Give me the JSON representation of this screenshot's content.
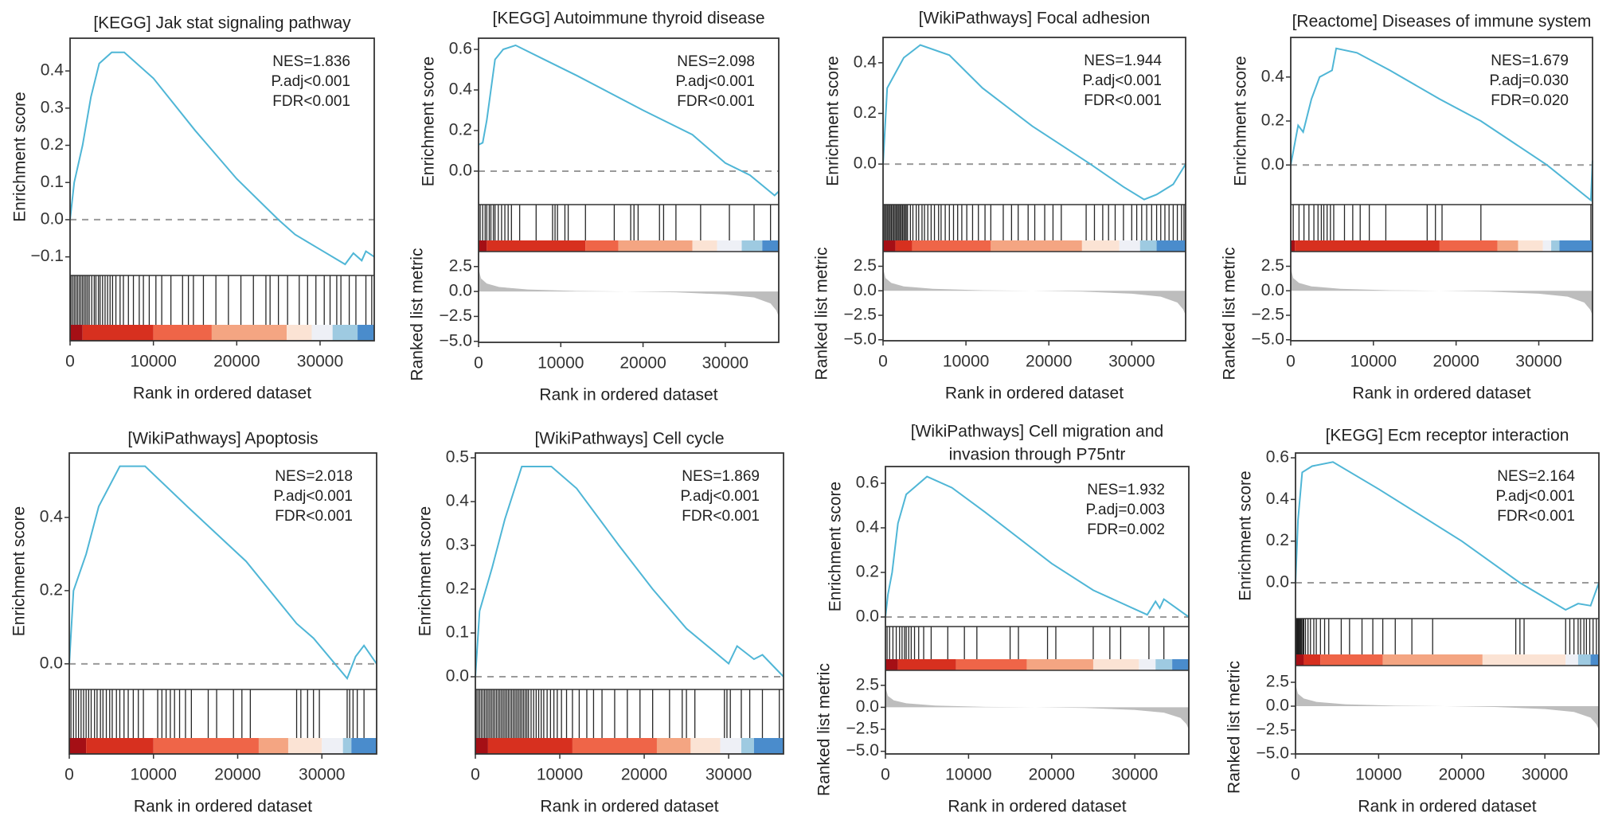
{
  "colors": {
    "es_line": "#4fb6d6",
    "zero_line": "#9a9a9a",
    "metric_fill": "#bdbdbd",
    "hit": "#000000",
    "colorbar": [
      "#a50f15",
      "#d7301f",
      "#ef6548",
      "#f4a582",
      "#fbe3d4",
      "#eef0f6",
      "#9ecae1",
      "#4a8ccc"
    ]
  },
  "chart_data": [
    {
      "type": "line",
      "title_lines": [
        "[KEGG] Jak stat signaling pathway"
      ],
      "stats": [
        "NES=1.836",
        "P.adj<0.001",
        "FDR<0.001"
      ],
      "ylabel": "Enrichment score",
      "xlabel": "Rank in ordered dataset",
      "xlim": [
        0,
        36500
      ],
      "xticks": [
        "0",
        "10000",
        "20000",
        "30000"
      ],
      "es_ylim": [
        -0.15,
        0.488
      ],
      "es_yticks": [
        "−0.1",
        "0.0",
        "0.1",
        "0.2",
        "0.3",
        "0.4"
      ],
      "es_curve": [
        [
          0,
          0
        ],
        [
          500,
          0.1
        ],
        [
          1500,
          0.2
        ],
        [
          2500,
          0.33
        ],
        [
          3500,
          0.42
        ],
        [
          5000,
          0.45
        ],
        [
          6500,
          0.45
        ],
        [
          10000,
          0.38
        ],
        [
          15000,
          0.24
        ],
        [
          20000,
          0.11
        ],
        [
          25000,
          0.0
        ],
        [
          27000,
          -0.04
        ],
        [
          30000,
          -0.08
        ],
        [
          33000,
          -0.12
        ],
        [
          34000,
          -0.09
        ],
        [
          35000,
          -0.11
        ],
        [
          35500,
          -0.085
        ],
        [
          36500,
          -0.1
        ]
      ],
      "hits_k": [
        0.1,
        0.3,
        0.5,
        0.7,
        0.9,
        1.1,
        1.3,
        1.5,
        1.7,
        1.9,
        2.1,
        2.3,
        2.6,
        2.9,
        3.1,
        3.4,
        3.6,
        3.9,
        4.2,
        4.5,
        4.8,
        5.1,
        5.5,
        6.0,
        6.4,
        7.0,
        7.6,
        8.3,
        8.8,
        9.5,
        10.3,
        11.0,
        12.1,
        13.5,
        14.2,
        14.8,
        16.0,
        17.5,
        19.0,
        20.5,
        22.0,
        23.5,
        24.0,
        25.0,
        26.1,
        27.5,
        28.5,
        29.5,
        30.5,
        31.2,
        32.0,
        32.5,
        33.5,
        34.3,
        35.5,
        36.2
      ],
      "colorbar_breaks": [
        0,
        1500,
        10000,
        17000,
        26000,
        29000,
        31500,
        34500,
        36500
      ]
    },
    {
      "type": "line",
      "title_lines": [
        "[KEGG] Autoimmune thyroid disease"
      ],
      "stats": [
        "NES=2.098",
        "P.adj<0.001",
        "FDR<0.001"
      ],
      "ylabel": "Enrichment score",
      "ylabel2": "Ranked list metric",
      "xlabel": "Rank in ordered dataset",
      "xlim": [
        0,
        36500
      ],
      "xticks": [
        "0",
        "10000",
        "20000",
        "30000"
      ],
      "es_ylim": [
        -0.165,
        0.655
      ],
      "es_yticks": [
        "0.0",
        "0.2",
        "0.4",
        "0.6"
      ],
      "metric_ylim": [
        -5.1,
        4.0
      ],
      "metric_yticks": [
        "−5.0",
        "−2.5",
        "0.0",
        "2.5"
      ],
      "es_curve": [
        [
          0,
          0.13
        ],
        [
          500,
          0.14
        ],
        [
          1000,
          0.25
        ],
        [
          1500,
          0.4
        ],
        [
          2000,
          0.55
        ],
        [
          3000,
          0.6
        ],
        [
          4500,
          0.62
        ],
        [
          8000,
          0.55
        ],
        [
          12000,
          0.47
        ],
        [
          20000,
          0.3
        ],
        [
          26000,
          0.18
        ],
        [
          30000,
          0.04
        ],
        [
          33000,
          -0.02
        ],
        [
          36000,
          -0.12
        ],
        [
          36500,
          -0.1
        ]
      ],
      "hits_k": [
        0.2,
        0.5,
        0.8,
        1.0,
        1.3,
        1.5,
        1.8,
        2.0,
        2.4,
        2.8,
        3.2,
        3.6,
        4.0,
        5.0,
        7.0,
        9.0,
        9.3,
        9.6,
        10.5,
        10.9,
        13.0,
        16.5,
        18.5,
        18.9,
        19.4,
        22.0,
        22.5,
        24.0,
        27.0,
        30.5,
        33.5,
        35.5
      ],
      "colorbar_breaks": [
        0,
        1000,
        13000,
        17000,
        26000,
        29000,
        32000,
        34500,
        36500
      ]
    },
    {
      "type": "line",
      "title_lines": [
        "[WikiPathways] Focal adhesion"
      ],
      "stats": [
        "NES=1.944",
        "P.adj<0.001",
        "FDR<0.001"
      ],
      "ylabel": "Enrichment score",
      "ylabel2": "Ranked list metric",
      "xlabel": "Rank in ordered dataset",
      "xlim": [
        0,
        36500
      ],
      "xticks": [
        "0",
        "10000",
        "20000",
        "30000"
      ],
      "es_ylim": [
        -0.16,
        0.5
      ],
      "es_yticks": [
        "0.0",
        "0.2",
        "0.4"
      ],
      "metric_ylim": [
        -5.1,
        4.0
      ],
      "metric_yticks": [
        "−5.0",
        "−2.5",
        "0.0",
        "2.5"
      ],
      "es_curve": [
        [
          0,
          0
        ],
        [
          500,
          0.3
        ],
        [
          1500,
          0.36
        ],
        [
          2500,
          0.42
        ],
        [
          4500,
          0.47
        ],
        [
          8000,
          0.43
        ],
        [
          12000,
          0.3
        ],
        [
          18000,
          0.15
        ],
        [
          25000,
          0.0
        ],
        [
          29000,
          -0.09
        ],
        [
          31500,
          -0.14
        ],
        [
          33000,
          -0.12
        ],
        [
          35000,
          -0.08
        ],
        [
          36500,
          0.0
        ]
      ],
      "hits_k": [
        0.1,
        0.25,
        0.4,
        0.55,
        0.7,
        0.85,
        1.0,
        1.15,
        1.3,
        1.45,
        1.6,
        1.75,
        1.9,
        2.05,
        2.2,
        2.35,
        2.5,
        2.65,
        2.8,
        2.95,
        3.3,
        3.6,
        4.0,
        4.3,
        4.7,
        5.0,
        5.4,
        5.8,
        6.2,
        6.7,
        7.0,
        7.5,
        8.0,
        8.5,
        9.0,
        9.5,
        10.1,
        10.8,
        11.5,
        12.3,
        13.0,
        14.5,
        15.5,
        16.3,
        17.5,
        18.3,
        19.5,
        20.5,
        21.5,
        24.5,
        25.5,
        26.5,
        27.2,
        28.0,
        29.0,
        30.0,
        30.6,
        31.2,
        31.8,
        32.4,
        33.0,
        33.5,
        34.0,
        34.5,
        35.0,
        35.5,
        36.0,
        36.3
      ],
      "colorbar_breaks": [
        0,
        1500,
        3500,
        13000,
        24000,
        28500,
        31000,
        33000,
        36500
      ]
    },
    {
      "type": "line",
      "title_lines": [
        "[Reactome] Diseases of immune system"
      ],
      "stats": [
        "NES=1.679",
        "P.adj=0.030",
        "FDR=0.020"
      ],
      "ylabel": "Enrichment score",
      "ylabel2": "Ranked list metric",
      "xlabel": "Rank in ordered dataset",
      "xlim": [
        0,
        36500
      ],
      "xticks": [
        "0",
        "10000",
        "20000",
        "30000"
      ],
      "es_ylim": [
        -0.18,
        0.58
      ],
      "es_yticks": [
        "0.0",
        "0.2",
        "0.4"
      ],
      "metric_ylim": [
        -5.1,
        4.0
      ],
      "metric_yticks": [
        "−5.0",
        "−2.5",
        "0.0",
        "2.5"
      ],
      "es_curve": [
        [
          0,
          0
        ],
        [
          600,
          0.12
        ],
        [
          900,
          0.18
        ],
        [
          1500,
          0.15
        ],
        [
          2500,
          0.3
        ],
        [
          3500,
          0.4
        ],
        [
          5000,
          0.43
        ],
        [
          5500,
          0.53
        ],
        [
          8000,
          0.51
        ],
        [
          12000,
          0.43
        ],
        [
          18000,
          0.3
        ],
        [
          23000,
          0.2
        ],
        [
          31000,
          0.0
        ],
        [
          36300,
          -0.16
        ],
        [
          36500,
          0.02
        ]
      ],
      "hits_k": [
        0.3,
        1.0,
        1.6,
        2.2,
        2.8,
        3.3,
        3.7,
        4.0,
        4.4,
        4.8,
        5.2,
        6.5,
        7.5,
        8.4,
        9.5,
        11.5,
        16.5,
        17.5,
        18.3,
        23.0,
        36.3
      ],
      "colorbar_breaks": [
        0,
        500,
        18000,
        25000,
        27500,
        30500,
        31500,
        32500,
        36500
      ]
    },
    {
      "type": "line",
      "title_lines": [
        "[WikiPathways] Apoptosis"
      ],
      "stats": [
        "NES=2.018",
        "P.adj<0.001",
        "FDR<0.001"
      ],
      "ylabel": "Enrichment score",
      "xlabel": "Rank in ordered dataset",
      "xlim": [
        0,
        36500
      ],
      "xticks": [
        "0",
        "10000",
        "20000",
        "30000"
      ],
      "es_ylim": [
        -0.07,
        0.576
      ],
      "es_yticks": [
        "0.0",
        "0.2",
        "0.4"
      ],
      "es_curve": [
        [
          0,
          0
        ],
        [
          500,
          0.2
        ],
        [
          2000,
          0.3
        ],
        [
          3500,
          0.43
        ],
        [
          6000,
          0.54
        ],
        [
          9000,
          0.54
        ],
        [
          14000,
          0.43
        ],
        [
          21000,
          0.28
        ],
        [
          27000,
          0.11
        ],
        [
          29000,
          0.07
        ],
        [
          33000,
          -0.04
        ],
        [
          34000,
          0.02
        ],
        [
          35000,
          0.05
        ],
        [
          36500,
          0.0
        ]
      ],
      "hits_k": [
        0.2,
        0.5,
        0.8,
        1.1,
        1.4,
        1.7,
        2.0,
        2.3,
        2.6,
        3.0,
        3.3,
        3.7,
        4.0,
        4.4,
        4.8,
        5.1,
        5.6,
        6.0,
        6.5,
        7.0,
        7.6,
        8.2,
        8.8,
        10.5,
        11.0,
        11.5,
        12.0,
        12.5,
        13.1,
        13.8,
        14.5,
        16.5,
        17.5,
        19.5,
        20.5,
        21.5,
        27.0,
        27.5,
        28.3,
        29.0,
        29.7,
        33.0,
        33.3,
        33.7,
        34.2,
        35.0
      ],
      "colorbar_breaks": [
        0,
        2000,
        10000,
        22500,
        26000,
        30000,
        32500,
        33500,
        36500
      ]
    },
    {
      "type": "line",
      "title_lines": [
        "[WikiPathways] Cell cycle"
      ],
      "stats": [
        "NES=1.869",
        "P.adj<0.001",
        "FDR<0.001"
      ],
      "ylabel": "Enrichment score",
      "xlabel": "Rank in ordered dataset",
      "xlim": [
        0,
        36500
      ],
      "xticks": [
        "0",
        "10000",
        "20000",
        "30000"
      ],
      "es_ylim": [
        -0.029,
        0.511
      ],
      "es_yticks": [
        "0.0",
        "0.1",
        "0.2",
        "0.3",
        "0.4",
        "0.5"
      ],
      "es_curve": [
        [
          0,
          0
        ],
        [
          500,
          0.15
        ],
        [
          2000,
          0.25
        ],
        [
          3500,
          0.36
        ],
        [
          5500,
          0.48
        ],
        [
          9000,
          0.48
        ],
        [
          12000,
          0.43
        ],
        [
          17000,
          0.3
        ],
        [
          21000,
          0.2
        ],
        [
          25000,
          0.11
        ],
        [
          30000,
          0.03
        ],
        [
          31000,
          0.07
        ],
        [
          33000,
          0.04
        ],
        [
          34000,
          0.05
        ],
        [
          36500,
          0.0
        ]
      ],
      "hits_k": [
        0.1,
        0.3,
        0.5,
        0.7,
        0.9,
        1.1,
        1.3,
        1.5,
        1.7,
        1.9,
        2.1,
        2.3,
        2.5,
        2.7,
        2.9,
        3.1,
        3.3,
        3.5,
        3.7,
        3.9,
        4.1,
        4.3,
        4.5,
        4.7,
        4.9,
        5.1,
        5.3,
        5.5,
        5.7,
        5.9,
        6.1,
        6.3,
        6.6,
        6.9,
        7.2,
        7.5,
        7.8,
        8.1,
        8.5,
        8.9,
        9.3,
        9.7,
        10.2,
        10.8,
        11.5,
        12.3,
        13.2,
        14.0,
        15.0,
        16.5,
        18.0,
        19.5,
        21.0,
        23.0,
        24.5,
        25.0,
        26.0,
        29.5,
        29.8,
        30.2,
        31.5,
        32.5,
        34.0,
        36.0
      ],
      "colorbar_breaks": [
        0,
        1500,
        11500,
        21500,
        25500,
        29000,
        31500,
        33000,
        36500
      ]
    },
    {
      "type": "line",
      "title_lines": [
        "[WikiPathways] Cell migration and",
        "invasion through P75ntr"
      ],
      "stats": [
        "NES=1.932",
        "P.adj=0.003",
        "FDR=0.002"
      ],
      "ylabel": "Enrichment score",
      "ylabel2": "Ranked list metric",
      "xlabel": "Rank in ordered dataset",
      "xlim": [
        0,
        36500
      ],
      "xticks": [
        "0",
        "10000",
        "20000",
        "30000"
      ],
      "es_ylim": [
        -0.043,
        0.675
      ],
      "es_yticks": [
        "0.0",
        "0.2",
        "0.4",
        "0.6"
      ],
      "metric_ylim": [
        -5.3,
        4.2
      ],
      "metric_yticks": [
        "−5.0",
        "−2.5",
        "0.0",
        "2.5"
      ],
      "es_curve": [
        [
          0,
          0
        ],
        [
          300,
          0.1
        ],
        [
          800,
          0.2
        ],
        [
          1500,
          0.42
        ],
        [
          2500,
          0.55
        ],
        [
          5000,
          0.63
        ],
        [
          8000,
          0.58
        ],
        [
          12000,
          0.47
        ],
        [
          20000,
          0.24
        ],
        [
          25000,
          0.12
        ],
        [
          31500,
          0.01
        ],
        [
          32500,
          0.07
        ],
        [
          33000,
          0.04
        ],
        [
          33500,
          0.08
        ],
        [
          36500,
          0.0
        ]
      ],
      "hits_k": [
        0.2,
        0.5,
        0.9,
        1.3,
        1.7,
        2.0,
        2.3,
        2.5,
        2.8,
        3.1,
        3.5,
        4.0,
        4.6,
        5.5,
        7.5,
        9.5,
        11.0,
        15.0,
        16.0,
        19.5,
        20.5,
        25.0,
        27.0,
        28.3,
        31.7,
        33.5
      ],
      "colorbar_breaks": [
        0,
        1500,
        8500,
        17000,
        25000,
        30500,
        32500,
        34500,
        36500
      ]
    },
    {
      "type": "line",
      "title_lines": [
        "[KEGG] Ecm receptor interaction"
      ],
      "stats": [
        "NES=2.164",
        "P.adj<0.001",
        "FDR<0.001"
      ],
      "ylabel": "Enrichment score",
      "ylabel2": "Ranked list metric",
      "xlabel": "Rank in ordered dataset",
      "xlim": [
        0,
        36500
      ],
      "xticks": [
        "0",
        "10000",
        "20000",
        "30000"
      ],
      "es_ylim": [
        -0.172,
        0.623
      ],
      "es_yticks": [
        "0.0",
        "0.2",
        "0.4",
        "0.6"
      ],
      "metric_ylim": [
        -5.0,
        4.25
      ],
      "metric_yticks": [
        "−5.0",
        "−2.5",
        "0.0",
        "2.5"
      ],
      "es_curve": [
        [
          0,
          0
        ],
        [
          300,
          0.3
        ],
        [
          800,
          0.53
        ],
        [
          2000,
          0.56
        ],
        [
          4500,
          0.58
        ],
        [
          10000,
          0.45
        ],
        [
          20000,
          0.2
        ],
        [
          27000,
          0.0
        ],
        [
          32500,
          -0.13
        ],
        [
          34000,
          -0.1
        ],
        [
          35500,
          -0.11
        ],
        [
          36500,
          0.0
        ]
      ],
      "hits_k": [
        0.05,
        0.15,
        0.25,
        0.35,
        0.45,
        0.55,
        0.65,
        0.75,
        0.9,
        1.0,
        1.2,
        1.5,
        1.8,
        2.2,
        2.5,
        3.0,
        3.5,
        4.0,
        5.5,
        6.5,
        8.0,
        9.3,
        10.5,
        12.0,
        14.0,
        16.5,
        26.5,
        27.0,
        27.5,
        32.5,
        33.0,
        33.5,
        34.0,
        34.3,
        34.7,
        35.0,
        35.4,
        35.8,
        36.2
      ],
      "colorbar_breaks": [
        0,
        1000,
        3000,
        10500,
        22500,
        32500,
        34000,
        35500,
        36500
      ]
    }
  ],
  "ranked_metric_curve": [
    [
      0,
      2.3
    ],
    [
      300,
      1.3
    ],
    [
      1000,
      0.8
    ],
    [
      2500,
      0.45
    ],
    [
      6000,
      0.2
    ],
    [
      12000,
      0.05
    ],
    [
      18000,
      0.0
    ],
    [
      24000,
      -0.08
    ],
    [
      30000,
      -0.3
    ],
    [
      33500,
      -0.6
    ],
    [
      35500,
      -1.2
    ],
    [
      36200,
      -1.9
    ],
    [
      36500,
      -2.5
    ]
  ]
}
